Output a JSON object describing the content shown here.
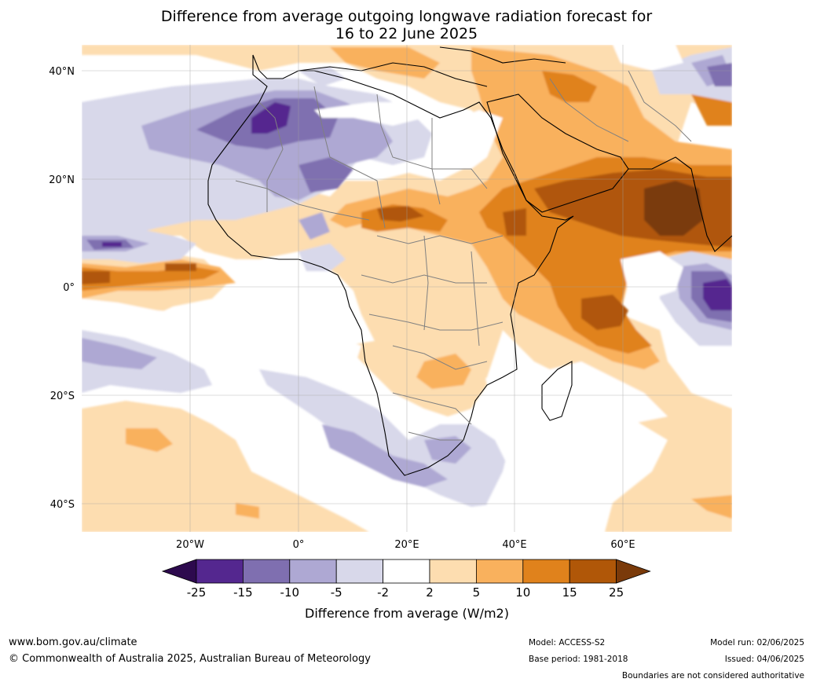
{
  "title": {
    "line1": "Difference from average outgoing longwave radiation forecast for",
    "line2": "16 to 22 June 2025"
  },
  "map": {
    "lat_labels": [
      "40°N",
      "20°N",
      "0°",
      "20°S",
      "40°S"
    ],
    "lon_labels": [
      "20°W",
      "0°",
      "20°E",
      "40°E",
      "60°E"
    ]
  },
  "colorbar": {
    "ticks": [
      "-25",
      "-15",
      "-10",
      "-5",
      "-2",
      "2",
      "5",
      "10",
      "15",
      "25"
    ],
    "colors": [
      "#2d0a4e",
      "#54278f",
      "#7f6fb0",
      "#aea8d3",
      "#d8d8ea",
      "#ffffff",
      "#fdddb0",
      "#f9b15d",
      "#e0821c",
      "#b05708",
      "#7a3a0a"
    ],
    "label": "Difference from average (W/m2)"
  },
  "footer": {
    "website": "www.bom.gov.au/climate",
    "copyright": "© Commonwealth of Australia 2025, Australian Bureau of Meteorology",
    "model": "Model: ACCESS-S2",
    "base_period": "Base period: 1981-2018",
    "model_run": "Model run: 02/06/2025",
    "issued": "Issued: 04/06/2025",
    "disclaimer": "Boundaries are not considered authoritative"
  }
}
